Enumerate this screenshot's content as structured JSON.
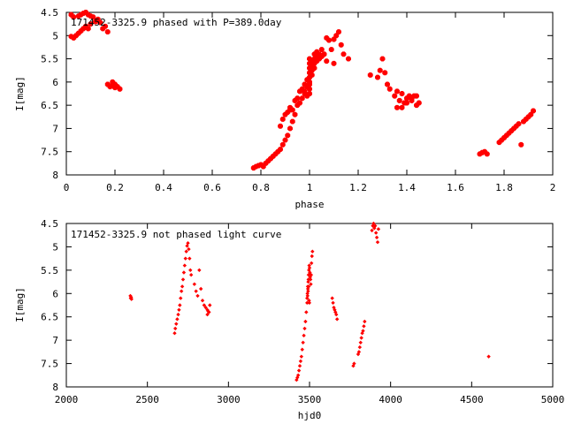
{
  "chart_data": [
    {
      "type": "scatter",
      "title": "171452-3325.9 phased with P=389.0day",
      "xlabel": "phase",
      "ylabel": "I[mag]",
      "xlim": [
        0,
        2
      ],
      "ylim": [
        8,
        4.5
      ],
      "y_inverted": true,
      "grid": false,
      "xticks": [
        0,
        0.2,
        0.4,
        0.6,
        0.8,
        1,
        1.2,
        1.4,
        1.6,
        1.8,
        2
      ],
      "xtick_labels": [
        "0",
        "0.2",
        "0.4",
        "0.6",
        "0.8",
        "1",
        "1.2",
        "1.4",
        "1.6",
        "1.8",
        "2"
      ],
      "yticks": [
        4.5,
        5,
        5.5,
        6,
        6.5,
        7,
        7.5,
        8
      ],
      "ytick_labels": [
        "4.5",
        "5",
        "5.5",
        "6",
        "6.5",
        "7",
        "7.5",
        "8"
      ],
      "marker_color": "#ff0000",
      "series": [
        {
          "points": [
            [
              0.02,
              4.55
            ],
            [
              0.03,
              4.6
            ],
            [
              0.05,
              4.58
            ],
            [
              0.06,
              4.55
            ],
            [
              0.07,
              4.52
            ],
            [
              0.08,
              4.5
            ],
            [
              0.09,
              4.55
            ],
            [
              0.1,
              4.58
            ],
            [
              0.11,
              4.6
            ],
            [
              0.13,
              4.65
            ],
            [
              0.14,
              4.72
            ],
            [
              0.16,
              4.8
            ],
            [
              0.02,
              5.02
            ],
            [
              0.03,
              5.05
            ],
            [
              0.04,
              5.0
            ],
            [
              0.05,
              4.95
            ],
            [
              0.06,
              4.9
            ],
            [
              0.07,
              4.85
            ],
            [
              0.08,
              4.8
            ],
            [
              0.09,
              4.85
            ],
            [
              0.1,
              4.75
            ],
            [
              0.12,
              4.7
            ],
            [
              0.15,
              4.85
            ],
            [
              0.17,
              4.92
            ],
            [
              0.17,
              6.05
            ],
            [
              0.18,
              6.1
            ],
            [
              0.19,
              6.08
            ],
            [
              0.2,
              6.12
            ],
            [
              0.21,
              6.1
            ],
            [
              0.22,
              6.15
            ],
            [
              0.19,
              6.0
            ],
            [
              0.2,
              6.05
            ],
            [
              0.77,
              7.85
            ],
            [
              0.78,
              7.82
            ],
            [
              0.79,
              7.8
            ],
            [
              0.8,
              7.78
            ],
            [
              0.81,
              7.82
            ],
            [
              0.82,
              7.75
            ],
            [
              0.83,
              7.7
            ],
            [
              0.84,
              7.65
            ],
            [
              0.85,
              7.6
            ],
            [
              0.86,
              7.55
            ],
            [
              0.87,
              7.5
            ],
            [
              0.88,
              7.45
            ],
            [
              0.89,
              7.35
            ],
            [
              0.9,
              7.25
            ],
            [
              0.91,
              7.15
            ],
            [
              0.92,
              7.0
            ],
            [
              0.88,
              6.95
            ],
            [
              0.89,
              6.8
            ],
            [
              0.9,
              6.7
            ],
            [
              0.91,
              6.65
            ],
            [
              0.92,
              6.6
            ],
            [
              0.93,
              6.85
            ],
            [
              0.94,
              6.7
            ],
            [
              0.95,
              6.5
            ],
            [
              0.96,
              6.45
            ],
            [
              0.97,
              6.35
            ],
            [
              0.98,
              6.25
            ],
            [
              0.99,
              6.1
            ],
            [
              0.92,
              6.55
            ],
            [
              0.93,
              6.6
            ],
            [
              0.94,
              6.4
            ],
            [
              0.95,
              6.35
            ],
            [
              0.96,
              6.2
            ],
            [
              0.97,
              6.15
            ],
            [
              0.98,
              6.05
            ],
            [
              0.99,
              5.95
            ],
            [
              1.0,
              5.9
            ],
            [
              1.0,
              5.8
            ],
            [
              1.0,
              5.7
            ],
            [
              1.0,
              5.6
            ],
            [
              1.0,
              5.5
            ],
            [
              1.01,
              5.85
            ],
            [
              1.01,
              5.75
            ],
            [
              1.01,
              5.65
            ],
            [
              1.01,
              5.55
            ],
            [
              1.02,
              5.7
            ],
            [
              1.02,
              5.6
            ],
            [
              1.02,
              5.5
            ],
            [
              1.02,
              5.4
            ],
            [
              1.03,
              5.55
            ],
            [
              1.03,
              5.45
            ],
            [
              1.03,
              5.35
            ],
            [
              1.04,
              5.5
            ],
            [
              1.04,
              5.4
            ],
            [
              1.05,
              5.3
            ],
            [
              1.05,
              5.45
            ],
            [
              1.06,
              5.4
            ],
            [
              0.98,
              6.2
            ],
            [
              0.99,
              6.3
            ],
            [
              1.0,
              6.25
            ],
            [
              1.0,
              6.15
            ],
            [
              1.0,
              6.05
            ],
            [
              1.0,
              6.0
            ],
            [
              0.99,
              6.1
            ],
            [
              1.07,
              5.05
            ],
            [
              1.08,
              5.1
            ],
            [
              1.1,
              5.08
            ],
            [
              1.11,
              5.0
            ],
            [
              1.12,
              4.92
            ],
            [
              1.13,
              5.2
            ],
            [
              1.14,
              5.4
            ],
            [
              1.16,
              5.5
            ],
            [
              1.09,
              5.3
            ],
            [
              1.1,
              5.6
            ],
            [
              1.06,
              5.4
            ],
            [
              1.07,
              5.55
            ],
            [
              1.25,
              5.85
            ],
            [
              1.28,
              5.9
            ],
            [
              1.29,
              5.75
            ],
            [
              1.3,
              5.5
            ],
            [
              1.31,
              5.8
            ],
            [
              1.32,
              6.05
            ],
            [
              1.33,
              6.15
            ],
            [
              1.35,
              6.3
            ],
            [
              1.36,
              6.2
            ],
            [
              1.37,
              6.4
            ],
            [
              1.38,
              6.55
            ],
            [
              1.39,
              6.45
            ],
            [
              1.4,
              6.35
            ],
            [
              1.41,
              6.3
            ],
            [
              1.42,
              6.4
            ],
            [
              1.43,
              6.3
            ],
            [
              1.44,
              6.5
            ],
            [
              1.45,
              6.45
            ],
            [
              1.36,
              6.55
            ],
            [
              1.38,
              6.25
            ],
            [
              1.4,
              6.45
            ],
            [
              1.42,
              6.35
            ],
            [
              1.44,
              6.3
            ],
            [
              1.7,
              7.55
            ],
            [
              1.71,
              7.52
            ],
            [
              1.72,
              7.5
            ],
            [
              1.73,
              7.55
            ],
            [
              1.78,
              7.3
            ],
            [
              1.79,
              7.25
            ],
            [
              1.8,
              7.2
            ],
            [
              1.81,
              7.15
            ],
            [
              1.82,
              7.1
            ],
            [
              1.83,
              7.05
            ],
            [
              1.84,
              7.0
            ],
            [
              1.85,
              6.95
            ],
            [
              1.86,
              6.9
            ],
            [
              1.87,
              7.35
            ],
            [
              1.88,
              6.85
            ],
            [
              1.89,
              6.8
            ],
            [
              1.9,
              6.75
            ],
            [
              1.91,
              6.7
            ],
            [
              1.92,
              6.62
            ]
          ]
        }
      ]
    },
    {
      "type": "scatter",
      "title": "171452-3325.9 not phased light curve",
      "xlabel": "hjd0",
      "ylabel": "I[mag]",
      "xlim": [
        2000,
        5000
      ],
      "ylim": [
        8,
        4.5
      ],
      "y_inverted": true,
      "grid": false,
      "xticks": [
        2000,
        2500,
        3000,
        3500,
        4000,
        4500,
        5000
      ],
      "xtick_labels": [
        "2000",
        "2500",
        "3000",
        "3500",
        "4000",
        "4500",
        "5000"
      ],
      "yticks": [
        4.5,
        5,
        5.5,
        6,
        6.5,
        7,
        7.5,
        8
      ],
      "ytick_labels": [
        "4.5",
        "5",
        "5.5",
        "6",
        "6.5",
        "7",
        "7.5",
        "8"
      ],
      "marker_color": "#ff0000",
      "series": [
        {
          "points": [
            [
              2395,
              6.05
            ],
            [
              2397,
              6.1
            ],
            [
              2400,
              6.08
            ],
            [
              2402,
              6.12
            ],
            [
              2668,
              6.85
            ],
            [
              2672,
              6.75
            ],
            [
              2678,
              6.65
            ],
            [
              2684,
              6.55
            ],
            [
              2690,
              6.45
            ],
            [
              2695,
              6.35
            ],
            [
              2700,
              6.25
            ],
            [
              2705,
              6.1
            ],
            [
              2710,
              5.95
            ],
            [
              2715,
              5.85
            ],
            [
              2720,
              5.7
            ],
            [
              2725,
              5.55
            ],
            [
              2730,
              5.4
            ],
            [
              2735,
              5.25
            ],
            [
              2740,
              5.1
            ],
            [
              2745,
              4.98
            ],
            [
              2750,
              4.92
            ],
            [
              2755,
              5.05
            ],
            [
              2760,
              5.25
            ],
            [
              2765,
              5.5
            ],
            [
              2770,
              5.6
            ],
            [
              2790,
              5.8
            ],
            [
              2800,
              5.95
            ],
            [
              2810,
              6.05
            ],
            [
              2820,
              5.5
            ],
            [
              2830,
              5.9
            ],
            [
              2840,
              6.15
            ],
            [
              2850,
              6.25
            ],
            [
              2860,
              6.3
            ],
            [
              2870,
              6.35
            ],
            [
              2880,
              6.4
            ],
            [
              2885,
              6.25
            ],
            [
              2870,
              6.45
            ],
            [
              2875,
              6.38
            ],
            [
              3420,
              7.85
            ],
            [
              3425,
              7.8
            ],
            [
              3430,
              7.75
            ],
            [
              3435,
              7.65
            ],
            [
              3440,
              7.55
            ],
            [
              3445,
              7.45
            ],
            [
              3450,
              7.35
            ],
            [
              3455,
              7.2
            ],
            [
              3460,
              7.05
            ],
            [
              3465,
              6.9
            ],
            [
              3470,
              6.75
            ],
            [
              3475,
              6.6
            ],
            [
              3480,
              6.4
            ],
            [
              3485,
              6.2
            ],
            [
              3488,
              6.05
            ],
            [
              3490,
              5.9
            ],
            [
              3492,
              5.75
            ],
            [
              3494,
              5.6
            ],
            [
              3496,
              5.5
            ],
            [
              3498,
              5.4
            ],
            [
              3500,
              5.45
            ],
            [
              3502,
              5.55
            ],
            [
              3504,
              5.65
            ],
            [
              3506,
              5.7
            ],
            [
              3508,
              5.8
            ],
            [
              3510,
              5.6
            ],
            [
              3512,
              5.35
            ],
            [
              3515,
              5.2
            ],
            [
              3518,
              5.1
            ],
            [
              3485,
              6.1
            ],
            [
              3487,
              6.0
            ],
            [
              3489,
              5.85
            ],
            [
              3491,
              5.95
            ],
            [
              3493,
              5.7
            ],
            [
              3495,
              5.85
            ],
            [
              3497,
              6.15
            ],
            [
              3499,
              6.2
            ],
            [
              3640,
              6.1
            ],
            [
              3645,
              6.2
            ],
            [
              3650,
              6.3
            ],
            [
              3655,
              6.35
            ],
            [
              3660,
              6.4
            ],
            [
              3665,
              6.45
            ],
            [
              3670,
              6.55
            ],
            [
              3770,
              7.55
            ],
            [
              3775,
              7.5
            ],
            [
              3800,
              7.3
            ],
            [
              3805,
              7.25
            ],
            [
              3810,
              7.15
            ],
            [
              3815,
              7.05
            ],
            [
              3820,
              6.95
            ],
            [
              3825,
              6.85
            ],
            [
              3830,
              6.8
            ],
            [
              3835,
              6.7
            ],
            [
              3840,
              6.6
            ],
            [
              3885,
              4.65
            ],
            [
              3890,
              4.55
            ],
            [
              3895,
              4.5
            ],
            [
              3900,
              4.6
            ],
            [
              3905,
              4.55
            ],
            [
              3910,
              4.7
            ],
            [
              3915,
              4.8
            ],
            [
              3920,
              4.9
            ],
            [
              3925,
              4.62
            ],
            [
              4605,
              7.35
            ]
          ]
        }
      ]
    }
  ]
}
